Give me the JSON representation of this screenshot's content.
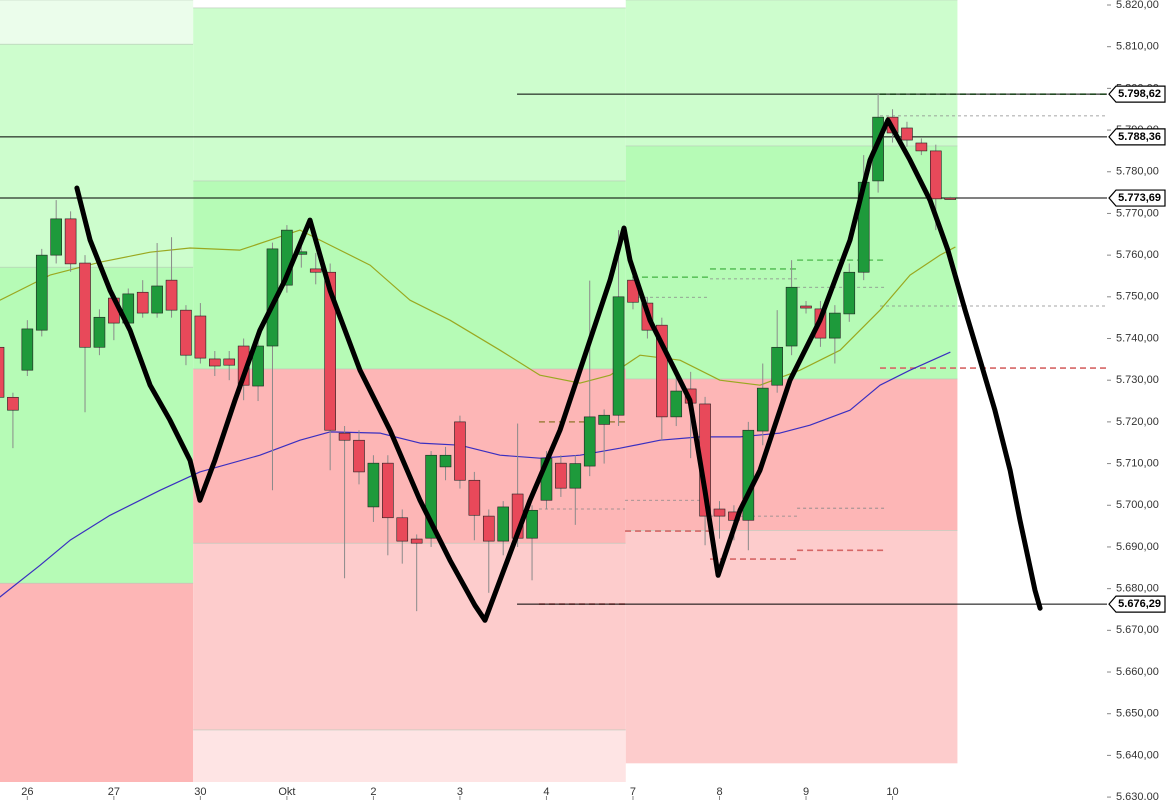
{
  "chart_data": {
    "type": "candlestick",
    "categories": [
      null,
      null,
      "26",
      null,
      null,
      null,
      null,
      null,
      "27",
      null,
      null,
      null,
      null,
      null,
      "30",
      null,
      null,
      null,
      null,
      null,
      "Okt",
      null,
      null,
      null,
      null,
      null,
      "2",
      null,
      null,
      null,
      null,
      null,
      "3",
      null,
      null,
      null,
      null,
      null,
      "4",
      null,
      null,
      null,
      null,
      null,
      "7",
      null,
      null,
      null,
      null,
      null,
      "8",
      null,
      null,
      null,
      null,
      null,
      "9",
      null,
      null,
      null,
      null,
      null,
      "10",
      null,
      null,
      null,
      null
    ],
    "open": [
      5737.9,
      5725.9,
      5732.4,
      5742.0,
      5760.0,
      5768.7,
      5758.1,
      5737.9,
      5749.7,
      5743.7,
      5751.1,
      5746.1,
      5754.0,
      5746.8,
      5745.4,
      5735.1,
      5735.1,
      5738.2,
      5728.6,
      5738.2,
      5752.8,
      5760.2,
      5756.7,
      5755.9,
      5717.3,
      5715.6,
      5699.6,
      5710.1,
      5697.0,
      5691.9,
      5692.1,
      5709.2,
      5720.0,
      5706.0,
      5697.4,
      5691.4,
      5702.7,
      5692.1,
      5701.2,
      5710.1,
      5704.1,
      5709.4,
      5719.4,
      5721.6,
      5754.0,
      5748.5,
      5743.2,
      5721.2,
      5727.9,
      5724.3,
      5699.1,
      5698.4,
      5696.4,
      5717.8,
      5728.8,
      5738.2,
      5747.8,
      5747.1,
      5740.1,
      5745.9,
      5755.9,
      5777.8,
      5793.1,
      5790.5,
      5786.9,
      5785.0,
      5773.7
    ],
    "high": [
      5740,
      5727,
      5744.4,
      5761.5,
      5773.2,
      5770.5,
      5760,
      5747,
      5751,
      5752,
      5754,
      5762.9,
      5764.3,
      5748,
      5748.5,
      5737,
      5737,
      5740,
      5740,
      5763,
      5767.2,
      5763,
      5760.5,
      5758,
      5719,
      5718,
      5712,
      5712,
      5699,
      5693,
      5713,
      5714,
      5721.5,
      5708,
      5699,
      5701,
      5719.6,
      5700,
      5713,
      5712,
      5712,
      5753.9,
      5723,
      5766,
      5756.5,
      5750,
      5745,
      5732,
      5732,
      5726,
      5701,
      5700,
      5720,
      5734,
      5746.8,
      5758.8,
      5749,
      5749,
      5748,
      5758,
      5784,
      5798.9,
      5795,
      5792,
      5788,
      5786.5,
      5774
    ],
    "low": [
      5724,
      5713.7,
      5731,
      5740.5,
      5758,
      5756,
      5722.3,
      5736,
      5739.6,
      5742,
      5745,
      5745,
      5745,
      5733.6,
      5734,
      5731,
      5730,
      5725.2,
      5725,
      5703.6,
      5751,
      5757,
      5753,
      5708.4,
      5682.5,
      5705,
      5696,
      5688,
      5686,
      5674.6,
      5690,
      5706,
      5704,
      5691.6,
      5679,
      5688,
      5690,
      5682,
      5699,
      5702,
      5695.3,
      5707,
      5710,
      5719,
      5747,
      5740,
      5715.6,
      5719,
      5711.3,
      5690.4,
      5692,
      5691.6,
      5689.2,
      5714.4,
      5727,
      5736,
      5746,
      5738,
      5734,
      5744,
      5754,
      5775,
      5787,
      5786,
      5784,
      5766,
      5773.3
    ],
    "close": [
      5725.9,
      5722.8,
      5742.3,
      5760.0,
      5768.7,
      5757.9,
      5737.9,
      5745.1,
      5743.7,
      5750.7,
      5746.1,
      5752.6,
      5746.8,
      5736.0,
      5735.3,
      5733.4,
      5733.6,
      5728.8,
      5738.2,
      5761.5,
      5766.0,
      5760.8,
      5755.9,
      5718.0,
      5715.6,
      5708.0,
      5710.1,
      5697.0,
      5691.4,
      5690.9,
      5712.0,
      5712.0,
      5706.0,
      5697.6,
      5691.4,
      5699.6,
      5692.1,
      5698.8,
      5711.3,
      5704.1,
      5710.0,
      5721.2,
      5721.6,
      5750.0,
      5748.7,
      5742.0,
      5721.2,
      5727.4,
      5724.5,
      5697.4,
      5697.4,
      5696.4,
      5718.0,
      5728.1,
      5737.9,
      5752.3,
      5747.3,
      5740.1,
      5746.1,
      5755.9,
      5777.5,
      5793.1,
      5789.3,
      5787.6,
      5785.0,
      5773.5,
      5773.5
    ],
    "colors": {
      "up": "#1e9a3b",
      "down": "#e8495a",
      "wick": "#8a8a8a"
    },
    "ylim": [
      5629.3,
      5821.2
    ],
    "yticks": [
      {
        "value": 5820,
        "label": "5.820,00"
      },
      {
        "value": 5810,
        "label": "5.810,00"
      },
      {
        "value": 5800,
        "label": "5.800,00"
      },
      {
        "value": 5790,
        "label": "5.790,00"
      },
      {
        "value": 5780,
        "label": "5.780,00"
      },
      {
        "value": 5770,
        "label": "5.770,00"
      },
      {
        "value": 5760,
        "label": "5.760,00"
      },
      {
        "value": 5750,
        "label": "5.750,00"
      },
      {
        "value": 5740,
        "label": "5.740,00"
      },
      {
        "value": 5730,
        "label": "5.730,00"
      },
      {
        "value": 5720,
        "label": "5.720,00"
      },
      {
        "value": 5710,
        "label": "5.710,00"
      },
      {
        "value": 5700,
        "label": "5.700,00"
      },
      {
        "value": 5690,
        "label": "5.690,00"
      },
      {
        "value": 5680,
        "label": "5.680,00"
      },
      {
        "value": 5670,
        "label": "5.670,00"
      },
      {
        "value": 5660,
        "label": "5.660,00"
      },
      {
        "value": 5650,
        "label": "5.650,00"
      },
      {
        "value": 5640,
        "label": "5.640,00"
      },
      {
        "value": 5630,
        "label": "5.630,00"
      }
    ],
    "zones": [
      {
        "x": [
          -0.5,
          13.5
        ],
        "y": [
          5810.6,
          5821.2
        ],
        "color": "#ebfdeb"
      },
      {
        "x": [
          -0.5,
          13.5
        ],
        "y": [
          5757.1,
          5810.6
        ],
        "color": "#cdfdcd"
      },
      {
        "x": [
          -0.5,
          13.5
        ],
        "y": [
          5681.3,
          5757.1
        ],
        "color": "#b6fbb6"
      },
      {
        "x": [
          -0.5,
          13.5
        ],
        "y": [
          5633.6,
          5681.3
        ],
        "color": "#fdb6b6"
      },
      {
        "x": [
          13.5,
          43.5
        ],
        "y": [
          5777.8,
          5819.3
        ],
        "color": "#cdfdcd"
      },
      {
        "x": [
          13.5,
          43.5
        ],
        "y": [
          5732.7,
          5777.8
        ],
        "color": "#b6fbb6"
      },
      {
        "x": [
          13.5,
          43.5
        ],
        "y": [
          5690.9,
          5732.7
        ],
        "color": "#fdb6b6"
      },
      {
        "x": [
          13.5,
          43.5
        ],
        "y": [
          5646.1,
          5690.9
        ],
        "color": "#fdcccc"
      },
      {
        "x": [
          13.5,
          43.5
        ],
        "y": [
          5633.6,
          5646.1
        ],
        "color": "#fee4e4"
      },
      {
        "x": [
          43.5,
          66.5
        ],
        "y": [
          5786.2,
          5821.2
        ],
        "color": "#cdfdcd"
      },
      {
        "x": [
          43.5,
          66.5
        ],
        "y": [
          5730.3,
          5786.2
        ],
        "color": "#b6fbb6"
      },
      {
        "x": [
          43.5,
          66.5
        ],
        "y": [
          5694.0,
          5730.3
        ],
        "color": "#fdb6b6"
      },
      {
        "x": [
          43.5,
          66.5
        ],
        "y": [
          5638.1,
          5694.0
        ],
        "color": "#fdcccc"
      }
    ],
    "levels": [
      {
        "x": [
          61.13,
          76.9
        ],
        "value": 5798.6,
        "color": "#5ec45e"
      },
      {
        "x": [
          61.13,
          76.9
        ],
        "value": 5793.4,
        "color": "#888888"
      },
      {
        "x": [
          61.13,
          76.9
        ],
        "value": 5747.8,
        "color": "#888888"
      },
      {
        "x": [
          61.13,
          76.9
        ],
        "value": 5732.9,
        "color": "#d66666"
      },
      {
        "x": [
          43.93,
          49.34
        ],
        "value": 5754.7,
        "color": "#5ec45e"
      },
      {
        "x": [
          43.93,
          49.34
        ],
        "value": 5749.9,
        "color": "#888888"
      },
      {
        "x": [
          49.34,
          55.38
        ],
        "value": 5756.7,
        "color": "#5ec45e"
      },
      {
        "x": [
          49.34,
          55.38
        ],
        "value": 5754.3,
        "color": "#888888"
      },
      {
        "x": [
          55.38,
          61.41
        ],
        "value": 5758.8,
        "color": "#5ec45e"
      },
      {
        "x": [
          55.38,
          61.41
        ],
        "value": 5752.3,
        "color": "#888888"
      },
      {
        "x": [
          37.48,
          43.45
        ],
        "value": 5676.3,
        "color": "#d66666"
      },
      {
        "x": [
          37.48,
          43.45
        ],
        "value": 5699.1,
        "color": "#888888"
      },
      {
        "x": [
          37.48,
          43.45
        ],
        "value": 5720.0,
        "color": "#a08040"
      },
      {
        "x": [
          43.45,
          49.34
        ],
        "value": 5693.8,
        "color": "#d66666"
      },
      {
        "x": [
          43.45,
          49.34
        ],
        "value": 5701.2,
        "color": "#888888"
      },
      {
        "x": [
          49.34,
          55.38
        ],
        "value": 5687.1,
        "color": "#d66666"
      },
      {
        "x": [
          49.34,
          55.38
        ],
        "value": 5697.4,
        "color": "#888888"
      },
      {
        "x": [
          55.38,
          61.41
        ],
        "value": 5689.2,
        "color": "#d66666"
      },
      {
        "x": [
          55.38,
          61.41
        ],
        "value": 5699.3,
        "color": "#888888"
      }
    ],
    "price_lines": [
      {
        "x": [
          35.96,
          76.9
        ],
        "value": 5798.62,
        "label": "5.798,62"
      },
      {
        "x": [
          -0.5,
          76.9
        ],
        "value": 5788.36,
        "label": "5.788,36"
      },
      {
        "x": [
          -0.5,
          76.9
        ],
        "value": 5773.69,
        "label": "5.773,69"
      },
      {
        "x": [
          35.96,
          76.9
        ],
        "value": 5676.29,
        "label": "5.676,29"
      }
    ],
    "lines": [
      {
        "color": "#9aa820",
        "width": 1.2,
        "x": [
          0.1,
          3.57,
          7.04,
          10.51,
          13.28,
          16.75,
          18.83,
          20.91,
          22.99,
          25.76,
          28.54,
          31.31,
          34.78,
          37.55,
          40.33,
          42.41,
          44.49,
          47.26,
          50.03,
          52.81,
          55.58,
          58.36,
          61.13,
          63.21,
          65.29,
          66.33
        ],
        "values": [
          5749.2,
          5755.2,
          5758.3,
          5760.7,
          5761.7,
          5761.2,
          5763.6,
          5766.0,
          5762.4,
          5757.6,
          5749.2,
          5744.4,
          5737.2,
          5731.2,
          5729.3,
          5731.2,
          5736.0,
          5734.8,
          5730.0,
          5728.8,
          5732.4,
          5737.2,
          5746.8,
          5755.2,
          5760.0,
          5761.9
        ]
      },
      {
        "color": "#3a2fc0",
        "width": 1.2,
        "x": [
          0.1,
          2.88,
          4.96,
          7.73,
          11.2,
          13.97,
          18.13,
          20.91,
          22.99,
          26.46,
          29.23,
          32.0,
          34.78,
          37.55,
          40.33,
          43.1,
          45.88,
          48.65,
          51.42,
          54.19,
          56.27,
          59.05,
          61.13,
          63.21,
          65.98
        ],
        "values": [
          5678.0,
          5685.6,
          5691.6,
          5697.6,
          5703.6,
          5708.0,
          5712.0,
          5715.6,
          5717.6,
          5717.3,
          5714.9,
          5714.4,
          5712.0,
          5711.3,
          5712.0,
          5713.7,
          5715.6,
          5716.4,
          5716.4,
          5717.3,
          5719.2,
          5722.8,
          5728.8,
          5732.4,
          5736.7
        ]
      },
      {
        "color": "#000000",
        "width": 5,
        "x": [
          5.44,
          6.35,
          7.73,
          9.12,
          10.51,
          11.89,
          13.28,
          13.97,
          15.01,
          16.4,
          18.13,
          19.87,
          21.6,
          22.99,
          25.07,
          27.15,
          29.23,
          31.31,
          33.04,
          33.74,
          34.78,
          36.86,
          38.94,
          41.02,
          42.41,
          43.38,
          43.79,
          45.18,
          46.57,
          47.95,
          48.99,
          49.9,
          51.42,
          52.81,
          54.89,
          56.97,
          59.05,
          60.44,
          61.68,
          63.21,
          64.6,
          65.84,
          67.03,
          68.07,
          69.1,
          70.15,
          70.84,
          71.88,
          72.23
        ],
        "values": [
          5776.1,
          5763.6,
          5751.6,
          5742.0,
          5728.8,
          5720.4,
          5710.8,
          5701.2,
          5710.8,
          5725.2,
          5742.0,
          5754.0,
          5768.4,
          5751.6,
          5732.4,
          5718.0,
          5701.2,
          5686.8,
          5676.0,
          5672.4,
          5682.0,
          5701.2,
          5718.0,
          5739.6,
          5754.0,
          5766.5,
          5758.8,
          5744.4,
          5734.8,
          5725.2,
          5703.6,
          5683.2,
          5698.8,
          5708.4,
          5730.0,
          5744.4,
          5763.6,
          5782.8,
          5792.4,
          5782.8,
          5773.2,
          5761.2,
          5746.8,
          5734.8,
          5722.8,
          5708.4,
          5696.4,
          5679.6,
          5675.3
        ]
      }
    ]
  }
}
